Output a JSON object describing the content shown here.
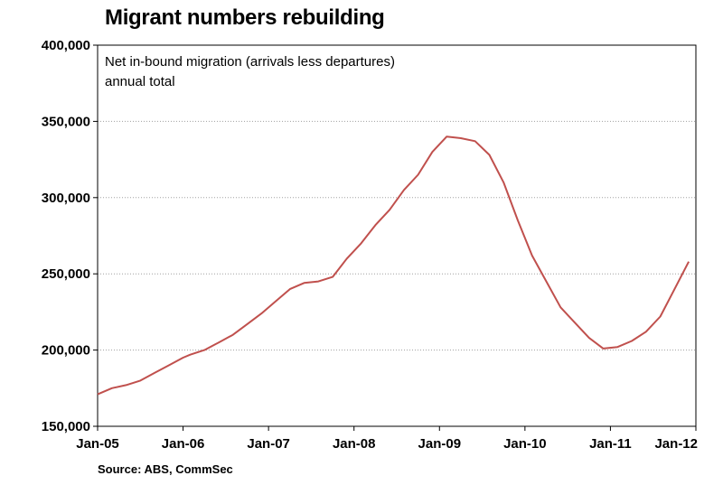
{
  "title": "Migrant numbers rebuilding",
  "source": "Source: ABS, CommSec",
  "chart_data": {
    "type": "line",
    "title": "Migrant numbers rebuilding",
    "annotation": [
      "Net in-bound migration (arrivals less departures)",
      "annual total"
    ],
    "ylim": [
      150000,
      400000
    ],
    "y_ticks": [
      150000,
      200000,
      250000,
      300000,
      350000,
      400000
    ],
    "y_tick_labels": [
      "150,000",
      "200,000",
      "250,000",
      "300,000",
      "350,000",
      "400,000"
    ],
    "x_range": [
      "2005-01",
      "2012-01"
    ],
    "x_ticks": [
      "2005-01",
      "2006-01",
      "2007-01",
      "2008-01",
      "2009-01",
      "2010-01",
      "2011-01",
      "2012-01"
    ],
    "x_tick_labels": [
      "Jan-05",
      "Jan-06",
      "Jan-07",
      "Jan-08",
      "Jan-09",
      "Jan-10",
      "Jan-11",
      "Jan-12"
    ],
    "grid": "horizontal dotted",
    "line_color": "#c0504d",
    "series": [
      {
        "x": [
          "2005-01",
          "2005-03",
          "2005-05",
          "2005-07",
          "2005-09",
          "2005-11",
          "2006-01",
          "2006-02",
          "2006-04",
          "2006-06",
          "2006-08",
          "2006-10",
          "2006-12",
          "2007-02",
          "2007-04",
          "2007-06",
          "2007-08",
          "2007-10",
          "2007-12",
          "2008-02",
          "2008-04",
          "2008-06",
          "2008-08",
          "2008-10",
          "2008-12",
          "2009-02",
          "2009-04",
          "2009-06",
          "2009-08",
          "2009-10",
          "2009-12",
          "2010-02",
          "2010-04",
          "2010-06",
          "2010-08",
          "2010-10",
          "2010-12",
          "2011-02",
          "2011-04",
          "2011-06",
          "2011-08",
          "2011-10",
          "2011-12"
        ],
        "values": [
          171000,
          175000,
          177000,
          180000,
          185000,
          190000,
          195000,
          197000,
          200000,
          205000,
          210000,
          217000,
          224000,
          232000,
          240000,
          244000,
          245000,
          248000,
          260000,
          270000,
          282000,
          292000,
          305000,
          315000,
          330000,
          340000,
          339000,
          337000,
          328000,
          310000,
          285000,
          262000,
          245000,
          228000,
          218000,
          208000,
          201000,
          202000,
          206000,
          212000,
          222000,
          240000,
          258000
        ]
      }
    ]
  }
}
